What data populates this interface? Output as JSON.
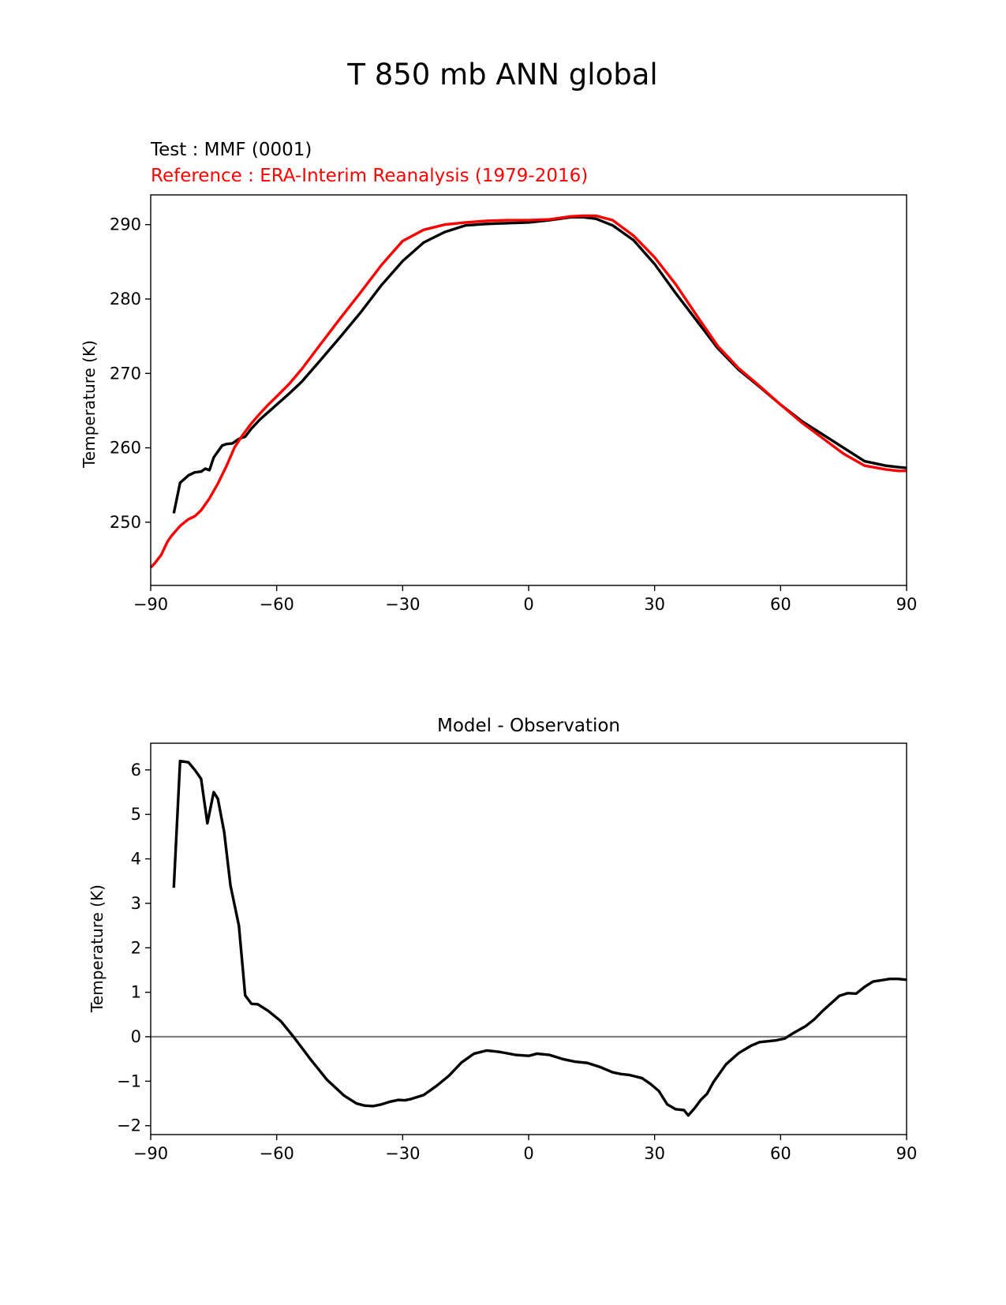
{
  "figure": {
    "title": "T 850 mb ANN global"
  },
  "chart_data": [
    {
      "type": "line",
      "test_label": "Test : MMF (0001)",
      "reference_label": "Reference : ERA-Interim Reanalysis (1979-2016)",
      "ylabel": "Temperature (K)",
      "xlabel": "",
      "xlim": [
        -90,
        90
      ],
      "ylim": [
        241.5,
        294
      ],
      "xticks": [
        -90,
        -60,
        -30,
        0,
        30,
        60,
        90
      ],
      "xtick_labels": [
        "−90",
        "−60",
        "−30",
        "0",
        "30",
        "60",
        "90"
      ],
      "yticks": [
        250,
        260,
        270,
        280,
        290
      ],
      "ytick_labels": [
        "250",
        "260",
        "270",
        "280",
        "290"
      ],
      "colors": {
        "test": "#000000",
        "reference": "#ff0000"
      },
      "series": [
        {
          "key": "test",
          "x": [
            -84.5,
            -83,
            -81,
            -79.5,
            -78,
            -77,
            -76,
            -75,
            -74,
            -73,
            -72,
            -70.5,
            -69,
            -67.5,
            -66,
            -64,
            -62,
            -60,
            -57,
            -54,
            -50,
            -45,
            -40,
            -35,
            -30,
            -25,
            -20,
            -15,
            -10,
            -5,
            0,
            5,
            10,
            13,
            16,
            20,
            25,
            30,
            35,
            40,
            45,
            50,
            55,
            60,
            65,
            70,
            75,
            80,
            85,
            88,
            90
          ],
          "y": [
            251.2,
            255.3,
            256.3,
            256.7,
            256.8,
            257.2,
            257.0,
            258.7,
            259.5,
            260.3,
            260.5,
            260.6,
            261.2,
            261.5,
            262.6,
            263.8,
            264.8,
            265.8,
            267.3,
            268.9,
            271.5,
            274.8,
            278.2,
            281.9,
            285.1,
            287.6,
            289.0,
            289.9,
            290.1,
            290.2,
            290.3,
            290.6,
            291.0,
            291.0,
            290.8,
            289.9,
            287.9,
            284.7,
            280.8,
            277.1,
            273.4,
            270.5,
            268.2,
            265.8,
            263.6,
            261.8,
            260.0,
            258.2,
            257.6,
            257.4,
            257.3
          ]
        },
        {
          "key": "reference",
          "x": [
            -90,
            -89,
            -87.5,
            -86,
            -85,
            -83,
            -81,
            -79.5,
            -78,
            -76,
            -74,
            -72,
            -70,
            -68,
            -66,
            -64,
            -62,
            -60,
            -57,
            -54,
            -50,
            -45,
            -40,
            -35,
            -30,
            -25,
            -20,
            -15,
            -10,
            -5,
            0,
            5,
            10,
            13,
            16,
            20,
            25,
            30,
            35,
            40,
            45,
            50,
            55,
            60,
            65,
            70,
            75,
            80,
            85,
            88,
            90
          ],
          "y": [
            243.9,
            244.5,
            245.6,
            247.4,
            248.2,
            249.5,
            250.4,
            250.8,
            251.6,
            253.2,
            255.2,
            257.5,
            260.1,
            261.8,
            263.3,
            264.6,
            265.8,
            266.9,
            268.6,
            270.6,
            273.6,
            277.3,
            280.9,
            284.6,
            287.8,
            289.3,
            290.0,
            290.3,
            290.5,
            290.6,
            290.6,
            290.7,
            291.1,
            291.2,
            291.2,
            290.6,
            288.5,
            285.6,
            282.0,
            277.8,
            273.7,
            270.7,
            268.3,
            265.8,
            263.4,
            261.3,
            259.2,
            257.6,
            257.1,
            256.9,
            256.9
          ]
        }
      ]
    },
    {
      "type": "line",
      "title": "Model - Observation",
      "ylabel": "Temperature (K)",
      "xlabel": "",
      "xlim": [
        -90,
        90
      ],
      "ylim": [
        -2.2,
        6.6
      ],
      "xticks": [
        -90,
        -60,
        -30,
        0,
        30,
        60,
        90
      ],
      "xtick_labels": [
        "−90",
        "−60",
        "−30",
        "0",
        "30",
        "60",
        "90"
      ],
      "yticks": [
        -2,
        -1,
        0,
        1,
        2,
        3,
        4,
        5,
        6
      ],
      "ytick_labels": [
        "−2",
        "−1",
        "0",
        "1",
        "2",
        "3",
        "4",
        "5",
        "6"
      ],
      "zero_line": {
        "y": 0,
        "color": "#808080"
      },
      "colors": {
        "difference": "#000000"
      },
      "series": [
        {
          "key": "difference",
          "x": [
            -84.5,
            -83,
            -81,
            -79.5,
            -78,
            -76.5,
            -75,
            -74,
            -72.5,
            -71,
            -69,
            -67.5,
            -66,
            -64.5,
            -62,
            -59,
            -56,
            -52,
            -48,
            -44,
            -41,
            -39,
            -37,
            -35,
            -33,
            -31,
            -29.5,
            -28,
            -25,
            -22,
            -19,
            -16,
            -13,
            -10,
            -7,
            -3,
            0,
            2,
            5,
            8,
            11,
            14,
            17,
            20,
            22,
            24,
            27,
            29,
            31,
            33,
            35,
            37,
            38,
            39.5,
            41,
            42.5,
            44,
            47,
            50,
            53,
            55,
            57,
            59,
            61,
            63,
            66,
            68,
            70,
            72,
            74,
            76,
            78,
            80,
            82,
            84,
            86,
            88,
            90
          ],
          "y": [
            3.35,
            6.2,
            6.17,
            6.0,
            5.8,
            4.8,
            5.5,
            5.35,
            4.6,
            3.4,
            2.5,
            0.93,
            0.74,
            0.73,
            0.58,
            0.35,
            0.0,
            -0.5,
            -0.97,
            -1.32,
            -1.5,
            -1.55,
            -1.56,
            -1.52,
            -1.46,
            -1.42,
            -1.43,
            -1.4,
            -1.31,
            -1.11,
            -0.88,
            -0.58,
            -0.38,
            -0.31,
            -0.34,
            -0.41,
            -0.43,
            -0.38,
            -0.41,
            -0.5,
            -0.56,
            -0.59,
            -0.68,
            -0.8,
            -0.84,
            -0.86,
            -0.93,
            -1.06,
            -1.22,
            -1.52,
            -1.63,
            -1.65,
            -1.77,
            -1.61,
            -1.42,
            -1.28,
            -1.02,
            -0.62,
            -0.37,
            -0.2,
            -0.12,
            -0.1,
            -0.08,
            -0.04,
            0.08,
            0.24,
            0.39,
            0.58,
            0.75,
            0.92,
            0.98,
            0.97,
            1.12,
            1.24,
            1.27,
            1.3,
            1.3,
            1.28
          ]
        }
      ]
    }
  ]
}
